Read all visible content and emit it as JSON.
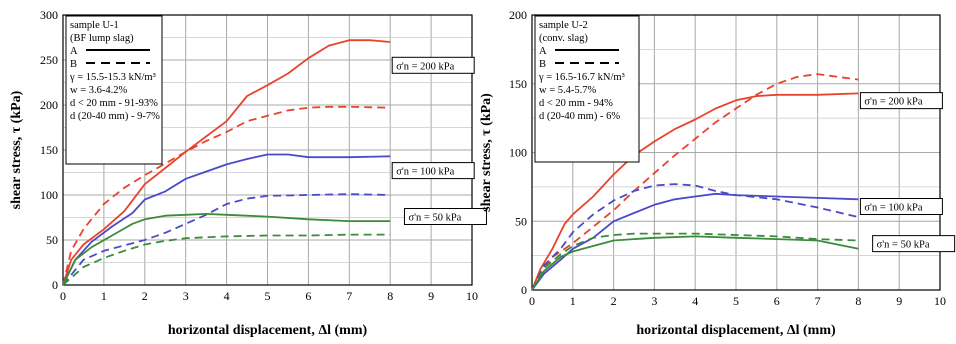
{
  "chart_data": [
    {
      "type": "line",
      "xlabel": "horizontal displacement, Δl (mm)",
      "ylabel": "shear stress, τ (kPa)",
      "xlim": [
        0,
        10
      ],
      "ylim": [
        0,
        300
      ],
      "xticks": [
        0,
        1,
        2,
        3,
        4,
        5,
        6,
        7,
        8,
        9,
        10
      ],
      "yticks": [
        0,
        50,
        100,
        150,
        200,
        250,
        300
      ],
      "grid": true,
      "legend": {
        "position": "top-left",
        "lines": [
          "sample U-1",
          "(BF lump slag)"
        ],
        "entries": [
          {
            "label": "A",
            "style": "solid"
          },
          {
            "label": "B",
            "style": "dashed"
          }
        ],
        "properties": [
          "γ = 15.5-15.3 kN/m³",
          "w = 3.6-4.2%",
          "d < 20 mm - 91-93%",
          "d (20-40 mm) - 9-7%"
        ]
      },
      "annotations": [
        {
          "text": "σ'n = 200 kPa",
          "x": 8,
          "y": 243
        },
        {
          "text": "σ'n = 100 kPa",
          "x": 8,
          "y": 126
        },
        {
          "text": "σ'n = 50 kPa",
          "x": 8.3,
          "y": 75
        }
      ],
      "series": [
        {
          "color": "#e8432c",
          "style": "solid",
          "points": [
            [
              0,
              0
            ],
            [
              0.2,
              28
            ],
            [
              0.5,
              45
            ],
            [
              1,
              62
            ],
            [
              1.5,
              82
            ],
            [
              2,
              112
            ],
            [
              2.5,
              130
            ],
            [
              3,
              148
            ],
            [
              3.5,
              165
            ],
            [
              4,
              182
            ],
            [
              4.5,
              210
            ],
            [
              5,
              222
            ],
            [
              5.5,
              235
            ],
            [
              6,
              252
            ],
            [
              6.5,
              266
            ],
            [
              7,
              272
            ],
            [
              7.5,
              272
            ],
            [
              8,
              270
            ]
          ]
        },
        {
          "color": "#e8432c",
          "style": "dashed",
          "points": [
            [
              0,
              0
            ],
            [
              0.2,
              38
            ],
            [
              0.5,
              62
            ],
            [
              1,
              90
            ],
            [
              1.5,
              108
            ],
            [
              2,
              122
            ],
            [
              2.5,
              135
            ],
            [
              3,
              148
            ],
            [
              3.5,
              160
            ],
            [
              4,
              170
            ],
            [
              4.5,
              182
            ],
            [
              5,
              188
            ],
            [
              5.5,
              194
            ],
            [
              6,
              197
            ],
            [
              6.5,
              198
            ],
            [
              7,
              198
            ],
            [
              8,
              197
            ]
          ]
        },
        {
          "color": "#4a4ac8",
          "style": "solid",
          "points": [
            [
              0,
              0
            ],
            [
              0.3,
              28
            ],
            [
              0.7,
              48
            ],
            [
              1.2,
              65
            ],
            [
              1.7,
              80
            ],
            [
              2,
              95
            ],
            [
              2.5,
              104
            ],
            [
              3,
              118
            ],
            [
              3.5,
              126
            ],
            [
              4,
              134
            ],
            [
              4.5,
              140
            ],
            [
              5,
              145
            ],
            [
              5.5,
              145
            ],
            [
              6,
              142
            ],
            [
              7,
              142
            ],
            [
              8,
              143
            ]
          ]
        },
        {
          "color": "#4a4ac8",
          "style": "dashed",
          "points": [
            [
              0,
              0
            ],
            [
              0.5,
              28
            ],
            [
              1,
              38
            ],
            [
              1.5,
              44
            ],
            [
              2,
              50
            ],
            [
              2.5,
              58
            ],
            [
              3,
              68
            ],
            [
              3.5,
              78
            ],
            [
              4,
              90
            ],
            [
              4.5,
              96
            ],
            [
              5,
              99
            ],
            [
              6,
              100
            ],
            [
              7,
              101
            ],
            [
              8,
              100
            ]
          ]
        },
        {
          "color": "#3c8a3c",
          "style": "solid",
          "points": [
            [
              0,
              0
            ],
            [
              0.3,
              28
            ],
            [
              0.7,
              42
            ],
            [
              1.2,
              55
            ],
            [
              1.7,
              68
            ],
            [
              2,
              73
            ],
            [
              2.5,
              77
            ],
            [
              3,
              78
            ],
            [
              3.5,
              79
            ],
            [
              4,
              78
            ],
            [
              5,
              76
            ],
            [
              6,
              73
            ],
            [
              7,
              71
            ],
            [
              8,
              71
            ]
          ]
        },
        {
          "color": "#3c8a3c",
          "style": "dashed",
          "points": [
            [
              0,
              0
            ],
            [
              0.5,
              20
            ],
            [
              1,
              30
            ],
            [
              1.5,
              38
            ],
            [
              2,
              45
            ],
            [
              2.5,
              49
            ],
            [
              3,
              52
            ],
            [
              3.5,
              53
            ],
            [
              4,
              54
            ],
            [
              5,
              55
            ],
            [
              6,
              55
            ],
            [
              7,
              56
            ],
            [
              8,
              56
            ]
          ]
        }
      ]
    },
    {
      "type": "line",
      "xlabel": "horizontal displacement, Δl (mm)",
      "ylabel": "shear stress, τ (kPa)",
      "xlim": [
        0,
        10
      ],
      "ylim": [
        0,
        200
      ],
      "xticks": [
        0,
        1,
        2,
        3,
        4,
        5,
        6,
        7,
        8,
        9,
        10
      ],
      "yticks": [
        0,
        50,
        100,
        150,
        200
      ],
      "grid": true,
      "legend": {
        "position": "top-left",
        "lines": [
          "sample U-2",
          "(conv. slag)"
        ],
        "entries": [
          {
            "label": "A",
            "style": "solid"
          },
          {
            "label": "B",
            "style": "dashed"
          }
        ],
        "properties": [
          "γ = 16.5-16.7 kN/m³",
          "w = 5.4-5.7%",
          "d < 20 mm - 94%",
          "d (20-40 mm) - 6%"
        ]
      },
      "annotations": [
        {
          "text": "σ'n = 200 kPa",
          "x": 8,
          "y": 137
        },
        {
          "text": "σ'n = 100 kPa",
          "x": 8,
          "y": 60
        },
        {
          "text": "σ'n = 50 kPa",
          "x": 8.3,
          "y": 33
        }
      ],
      "series": [
        {
          "color": "#e8432c",
          "style": "solid",
          "points": [
            [
              0,
              0
            ],
            [
              0.2,
              15
            ],
            [
              0.5,
              30
            ],
            [
              0.8,
              48
            ],
            [
              1,
              55
            ],
            [
              1.5,
              68
            ],
            [
              2,
              84
            ],
            [
              2.5,
              98
            ],
            [
              3,
              108
            ],
            [
              3.5,
              117
            ],
            [
              4,
              124
            ],
            [
              4.5,
              132
            ],
            [
              5,
              138
            ],
            [
              5.5,
              141
            ],
            [
              6,
              142
            ],
            [
              7,
              142
            ],
            [
              8,
              143
            ]
          ]
        },
        {
          "color": "#e8432c",
          "style": "dashed",
          "points": [
            [
              0,
              0
            ],
            [
              0.2,
              12
            ],
            [
              0.5,
              24
            ],
            [
              1,
              34
            ],
            [
              1.5,
              46
            ],
            [
              2,
              58
            ],
            [
              2.5,
              72
            ],
            [
              3,
              85
            ],
            [
              3.5,
              98
            ],
            [
              4,
              110
            ],
            [
              4.5,
              122
            ],
            [
              5,
              132
            ],
            [
              5.5,
              142
            ],
            [
              6,
              150
            ],
            [
              6.5,
              155
            ],
            [
              7,
              157
            ],
            [
              7.5,
              155
            ],
            [
              8,
              153
            ]
          ]
        },
        {
          "color": "#4a4ac8",
          "style": "solid",
          "points": [
            [
              0,
              0
            ],
            [
              0.3,
              12
            ],
            [
              0.7,
              22
            ],
            [
              1,
              30
            ],
            [
              1.5,
              38
            ],
            [
              2,
              50
            ],
            [
              2.5,
              56
            ],
            [
              3,
              62
            ],
            [
              3.5,
              66
            ],
            [
              4,
              68
            ],
            [
              4.5,
              70
            ],
            [
              5,
              69
            ],
            [
              6,
              68
            ],
            [
              7,
              67
            ],
            [
              8,
              66
            ]
          ]
        },
        {
          "color": "#4a4ac8",
          "style": "dashed",
          "points": [
            [
              0,
              0
            ],
            [
              0.3,
              18
            ],
            [
              0.7,
              30
            ],
            [
              1,
              42
            ],
            [
              1.5,
              55
            ],
            [
              2,
              65
            ],
            [
              2.5,
              72
            ],
            [
              3,
              76
            ],
            [
              3.5,
              77
            ],
            [
              4,
              76
            ],
            [
              4.5,
              72
            ],
            [
              5,
              69
            ],
            [
              6,
              66
            ],
            [
              7,
              60
            ],
            [
              8,
              53
            ]
          ]
        },
        {
          "color": "#3c8a3c",
          "style": "solid",
          "points": [
            [
              0,
              0
            ],
            [
              0.3,
              14
            ],
            [
              0.7,
              24
            ],
            [
              1,
              28
            ],
            [
              1.5,
              32
            ],
            [
              2,
              36
            ],
            [
              2.5,
              37
            ],
            [
              3,
              38
            ],
            [
              4,
              39
            ],
            [
              5,
              38
            ],
            [
              6,
              37
            ],
            [
              7,
              36
            ],
            [
              8,
              30
            ]
          ]
        },
        {
          "color": "#3c8a3c",
          "style": "dashed",
          "points": [
            [
              0,
              0
            ],
            [
              0.3,
              16
            ],
            [
              0.7,
              26
            ],
            [
              1,
              32
            ],
            [
              1.5,
              38
            ],
            [
              2,
              40
            ],
            [
              2.5,
              41
            ],
            [
              3,
              41
            ],
            [
              4,
              41
            ],
            [
              5,
              40
            ],
            [
              6,
              39
            ],
            [
              7,
              37
            ],
            [
              8,
              36
            ]
          ]
        }
      ]
    }
  ]
}
